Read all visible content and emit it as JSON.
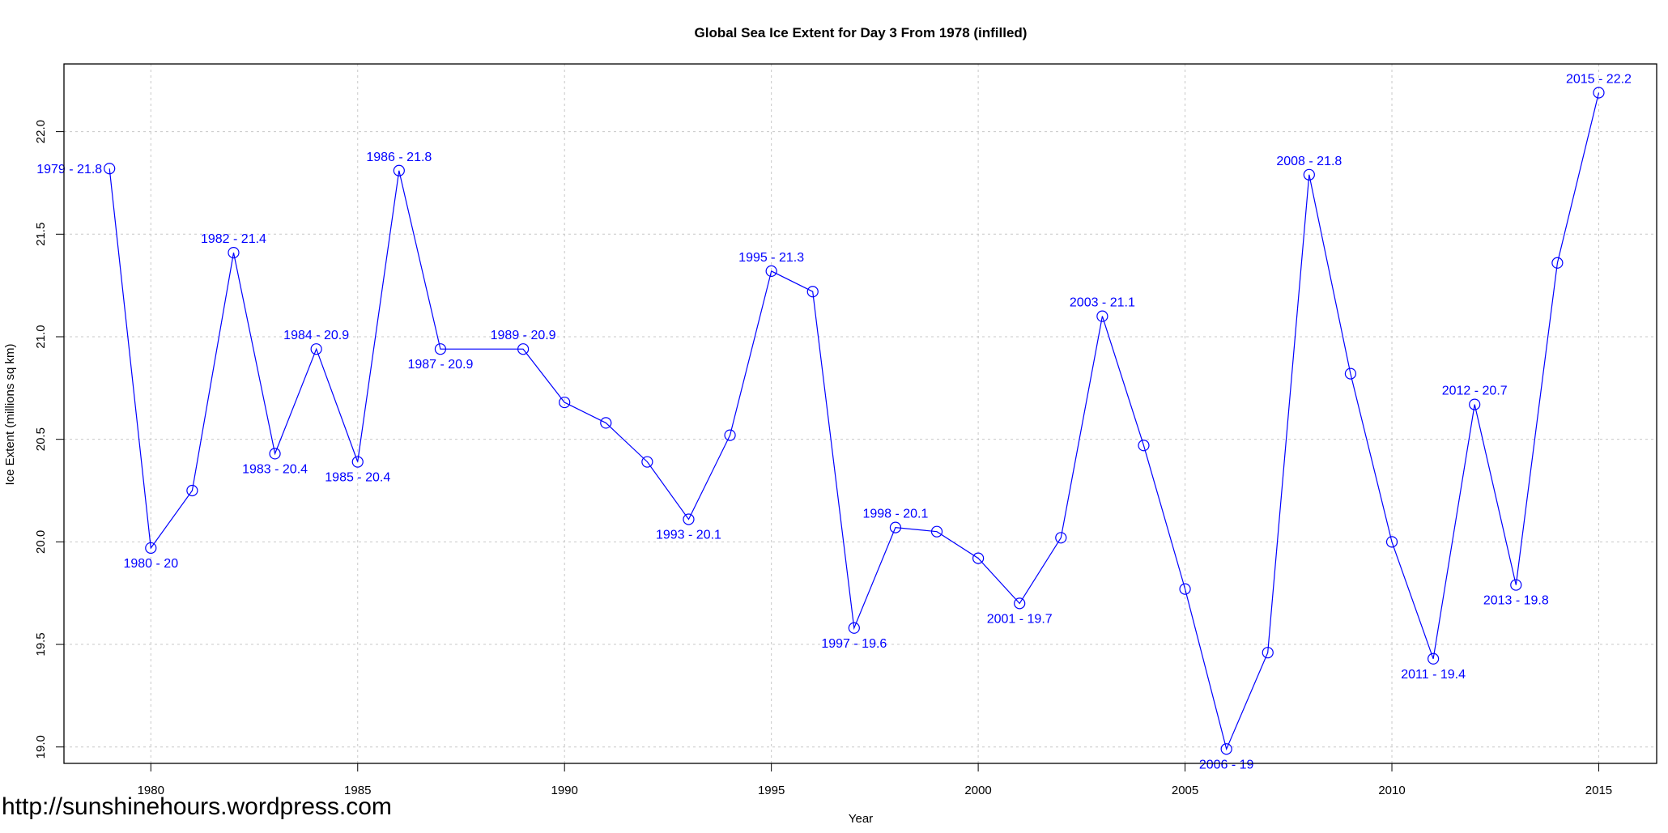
{
  "chart_data": {
    "type": "line",
    "title": "Global Sea Ice Extent for Day 3 From 1978 (infilled)",
    "xlabel": "Year",
    "ylabel": "Ice Extent (millions sq km)",
    "xlim": [
      1977.9,
      2016.4
    ],
    "ylim": [
      18.92,
      22.33
    ],
    "x_ticks": [
      1980,
      1985,
      1990,
      1995,
      2000,
      2005,
      2010,
      2015
    ],
    "y_ticks": [
      19.0,
      19.5,
      20.0,
      20.5,
      21.0,
      21.5,
      22.0
    ],
    "y_tick_labels": [
      "19.0",
      "19.5",
      "20.0",
      "20.5",
      "21.0",
      "21.5",
      "22.0"
    ],
    "grid": true,
    "series": [
      {
        "color": "#0000ff",
        "x": [
          1979,
          1980,
          1981,
          1982,
          1983,
          1984,
          1985,
          1986,
          1987,
          1989,
          1990,
          1991,
          1992,
          1993,
          1994,
          1995,
          1996,
          1997,
          1998,
          1999,
          2000,
          2001,
          2002,
          2003,
          2004,
          2005,
          2006,
          2007,
          2008,
          2009,
          2010,
          2011,
          2012,
          2013,
          2014,
          2015
        ],
        "y": [
          21.82,
          19.97,
          20.25,
          21.41,
          20.43,
          20.94,
          20.39,
          21.81,
          20.94,
          20.94,
          20.68,
          20.58,
          20.39,
          20.11,
          20.52,
          21.32,
          21.22,
          19.58,
          20.07,
          20.05,
          19.92,
          19.7,
          20.02,
          21.1,
          20.47,
          19.77,
          18.99,
          19.46,
          21.79,
          20.82,
          20.0,
          19.43,
          20.67,
          19.79,
          21.36,
          22.19
        ]
      }
    ],
    "annotations": [
      {
        "text": "1979 - 21.8",
        "x": 1979,
        "y": 21.82,
        "pos": "left"
      },
      {
        "text": "1980 - 20",
        "x": 1980,
        "y": 19.97,
        "pos": "below"
      },
      {
        "text": "1982 - 21.4",
        "x": 1982,
        "y": 21.41,
        "pos": "above"
      },
      {
        "text": "1983 - 20.4",
        "x": 1983,
        "y": 20.43,
        "pos": "below"
      },
      {
        "text": "1984 - 20.9",
        "x": 1984,
        "y": 20.94,
        "pos": "above"
      },
      {
        "text": "1985 - 20.4",
        "x": 1985,
        "y": 20.39,
        "pos": "below"
      },
      {
        "text": "1986 - 21.8",
        "x": 1986,
        "y": 21.81,
        "pos": "above"
      },
      {
        "text": "1987 - 20.9",
        "x": 1987,
        "y": 20.94,
        "pos": "below"
      },
      {
        "text": "1989 - 20.9",
        "x": 1989,
        "y": 20.94,
        "pos": "above"
      },
      {
        "text": "1993 - 20.1",
        "x": 1993,
        "y": 20.11,
        "pos": "below"
      },
      {
        "text": "1995 - 21.3",
        "x": 1995,
        "y": 21.32,
        "pos": "above"
      },
      {
        "text": "1997 - 19.6",
        "x": 1997,
        "y": 19.58,
        "pos": "below"
      },
      {
        "text": "1998 - 20.1",
        "x": 1998,
        "y": 20.07,
        "pos": "above"
      },
      {
        "text": "2001 - 19.7",
        "x": 2001,
        "y": 19.7,
        "pos": "below"
      },
      {
        "text": "2003 - 21.1",
        "x": 2003,
        "y": 21.1,
        "pos": "above"
      },
      {
        "text": "2006 - 19",
        "x": 2006,
        "y": 18.99,
        "pos": "below"
      },
      {
        "text": "2008 - 21.8",
        "x": 2008,
        "y": 21.79,
        "pos": "above"
      },
      {
        "text": "2011 - 19.4",
        "x": 2011,
        "y": 19.43,
        "pos": "below"
      },
      {
        "text": "2012 - 20.7",
        "x": 2012,
        "y": 20.67,
        "pos": "above"
      },
      {
        "text": "2013 - 19.8",
        "x": 2013,
        "y": 19.79,
        "pos": "below"
      },
      {
        "text": "2015 - 22.2",
        "x": 2015,
        "y": 22.19,
        "pos": "above"
      }
    ]
  },
  "watermark": "http://sunshinehours.wordpress.com"
}
